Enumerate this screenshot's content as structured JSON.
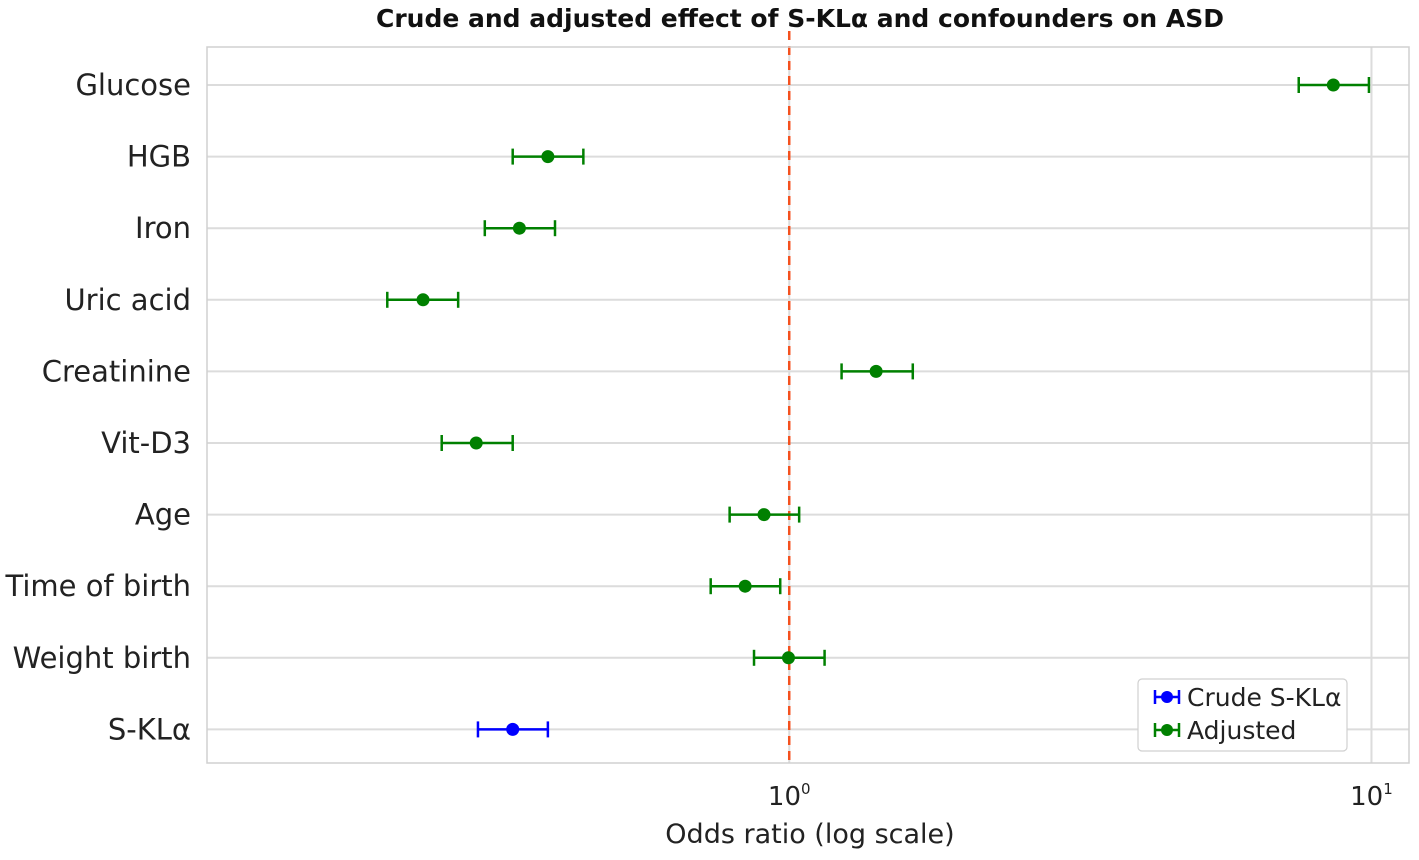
{
  "chart_data": {
    "type": "scatter",
    "title": "Crude and adjusted effect of S-KLα and confounders on ASD",
    "xlabel": "Odds ratio (log scale)",
    "ylabel": "",
    "x_scale": "log",
    "xlim": [
      0.1,
      11.6
    ],
    "x_ticks": [
      {
        "value": 1,
        "base": "10",
        "exp": "0"
      },
      {
        "value": 10,
        "base": "10",
        "exp": "1"
      }
    ],
    "reference_line": {
      "x": 1,
      "style": "dashed",
      "color": "#f4511e"
    },
    "grid": true,
    "legend_position": "lower-right",
    "categories": [
      "Glucose",
      "HGB",
      "Iron",
      "Uric acid",
      "Creatinine",
      "Vit-D3",
      "Age",
      "Time of birth",
      "Weight birth",
      "S-KLα"
    ],
    "series": [
      {
        "name": "Crude S-KLα",
        "color": "#0000ff",
        "points": [
          {
            "category": "S-KLα",
            "or": 0.335,
            "ci_low": 0.292,
            "ci_high": 0.385
          }
        ]
      },
      {
        "name": "Adjusted",
        "color": "#008000",
        "points": [
          {
            "category": "Glucose",
            "or": 8.6,
            "ci_low": 7.5,
            "ci_high": 9.9
          },
          {
            "category": "HGB",
            "or": 0.385,
            "ci_low": 0.335,
            "ci_high": 0.443
          },
          {
            "category": "Iron",
            "or": 0.344,
            "ci_low": 0.3,
            "ci_high": 0.396
          },
          {
            "category": "Uric acid",
            "or": 0.235,
            "ci_low": 0.204,
            "ci_high": 0.27
          },
          {
            "category": "Creatinine",
            "or": 1.41,
            "ci_low": 1.23,
            "ci_high": 1.63
          },
          {
            "category": "Vit-D3",
            "or": 0.29,
            "ci_low": 0.253,
            "ci_high": 0.335
          },
          {
            "category": "Age",
            "or": 0.905,
            "ci_low": 0.79,
            "ci_high": 1.04
          },
          {
            "category": "Time of birth",
            "or": 0.84,
            "ci_low": 0.733,
            "ci_high": 0.965
          },
          {
            "category": "Weight birth",
            "or": 0.997,
            "ci_low": 0.87,
            "ci_high": 1.15
          }
        ]
      }
    ]
  }
}
